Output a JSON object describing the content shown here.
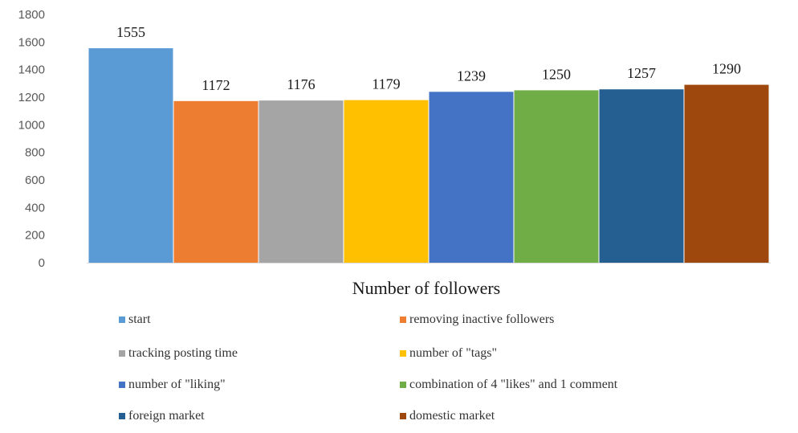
{
  "chart_data": {
    "type": "bar",
    "xlabel": "Number of followers",
    "ylabel": "",
    "ylim": [
      0,
      1800
    ],
    "yticks": [
      0,
      200,
      400,
      600,
      800,
      1000,
      1200,
      1400,
      1600,
      1800
    ],
    "grid": false,
    "legend_position": "bottom",
    "series": [
      {
        "name": "start",
        "value": 1555,
        "label": "1555",
        "color": "#5b9bd5"
      },
      {
        "name": "removing inactive followers",
        "value": 1172,
        "label": "1172",
        "color": "#ed7d31"
      },
      {
        "name": "tracking posting time",
        "value": 1176,
        "label": "1176",
        "color": "#a5a5a5"
      },
      {
        "name": "number of \"tags\"",
        "value": 1179,
        "label": "1179",
        "color": "#ffc000"
      },
      {
        "name": "number of \"liking\"",
        "value": 1239,
        "label": "1239",
        "color": "#4472c4"
      },
      {
        "name": "combination of 4 \"likes\" and 1 comment",
        "value": 1250,
        "label": "1250",
        "color": "#70ad47"
      },
      {
        "name": "foreign market",
        "value": 1257,
        "label": "1257",
        "color": "#255e91"
      },
      {
        "name": "domestic market",
        "value": 1290,
        "label": "1290",
        "color": "#9e480e"
      }
    ]
  }
}
